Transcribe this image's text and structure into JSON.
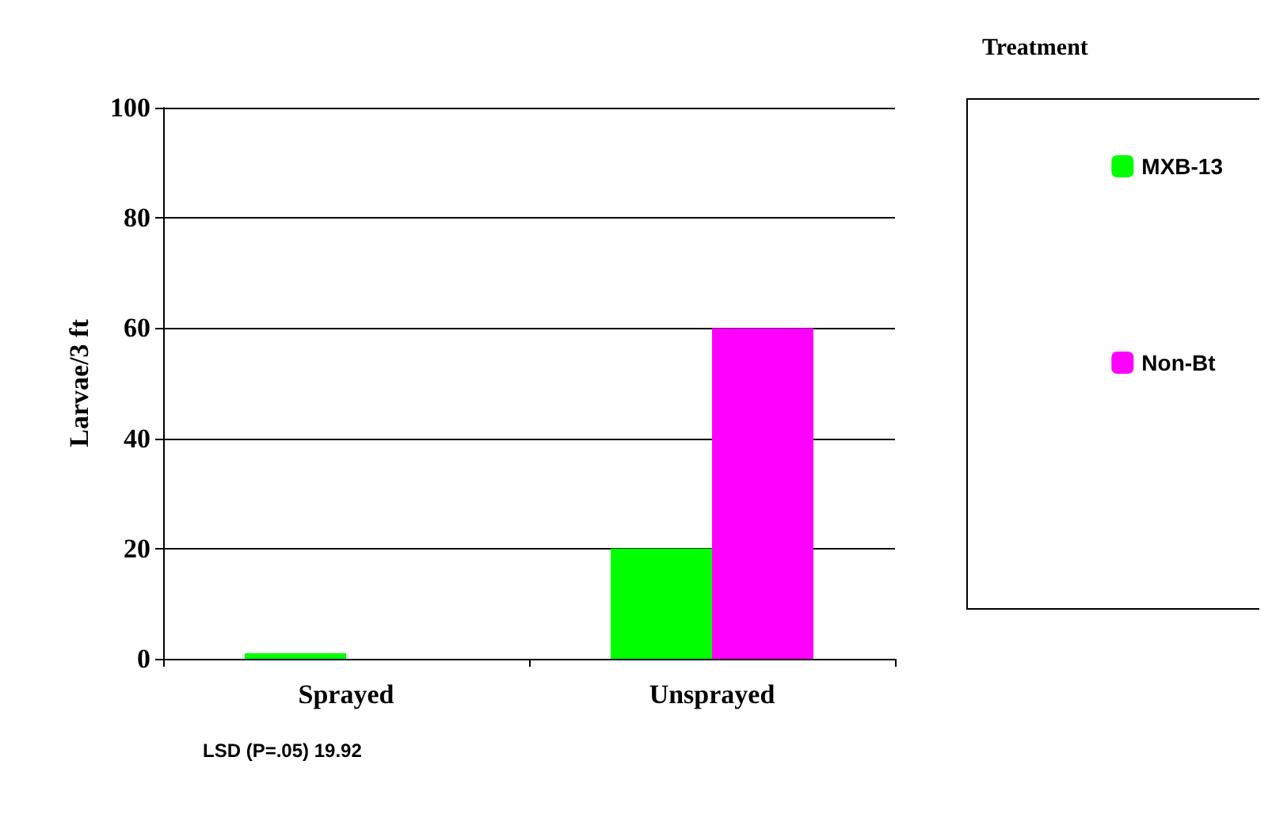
{
  "chart_data": {
    "type": "bar",
    "ylabel": "Larvae/3 ft",
    "legend_title": "Treatment",
    "categories": [
      "Sprayed",
      "Unsprayed"
    ],
    "series": [
      {
        "name": "MXB-13",
        "color": "#00ff00",
        "values": [
          1,
          20
        ]
      },
      {
        "name": "Non-Bt",
        "color": "#ff00ff",
        "values": [
          0,
          60
        ]
      }
    ],
    "ylim": [
      0,
      100
    ],
    "yticks": [
      0,
      20,
      40,
      60,
      80,
      100
    ],
    "grid": "y",
    "legend": "right",
    "annotations": [
      "LSD (P=.05) 19.92"
    ]
  }
}
